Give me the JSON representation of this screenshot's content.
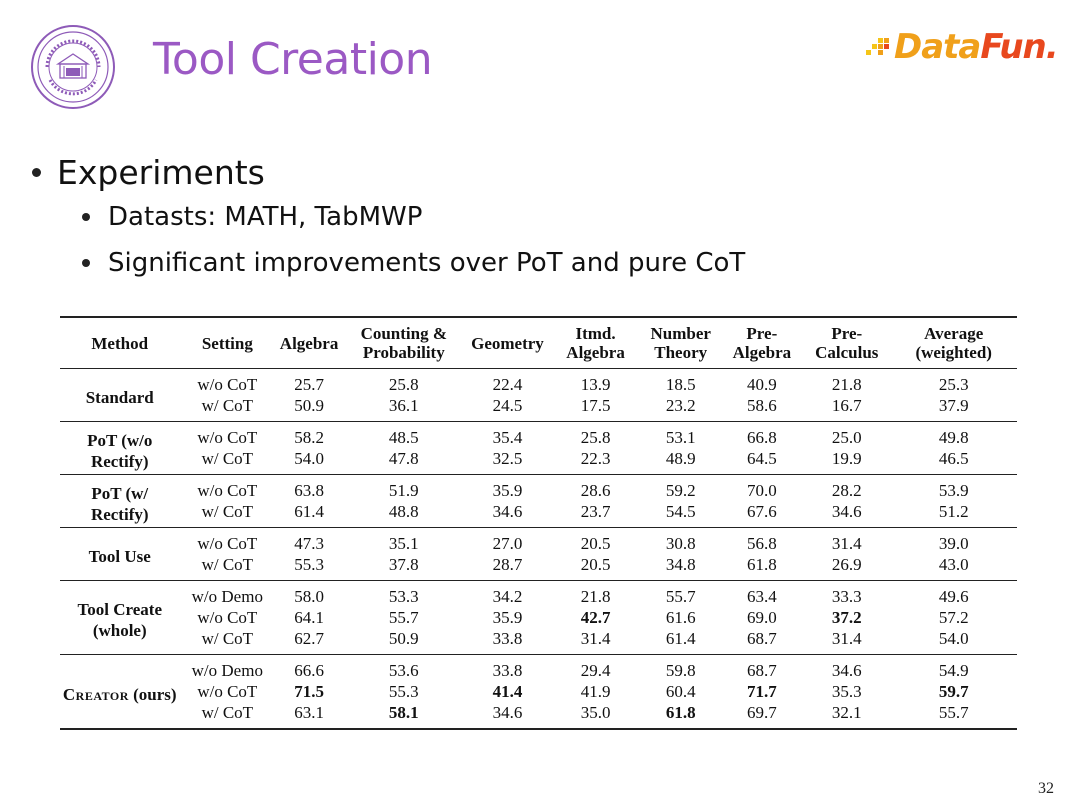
{
  "header": {
    "title": "Tool Creation",
    "brand": {
      "part1": "Data",
      "part2": "Fun."
    },
    "seal_icon": "tsinghua-nlp-seal-icon"
  },
  "bullets": {
    "main": "Experiments",
    "sub": [
      "Datasts: MATH, TabMWP",
      "Significant improvements over PoT and pure CoT"
    ]
  },
  "table": {
    "columns": [
      "Method",
      "Setting",
      "Algebra",
      "Counting & Probability",
      "Geometry",
      "Itmd. Algebra",
      "Number Theory",
      "Pre- Algebra",
      "Pre- Calculus",
      "Average (weighted)"
    ],
    "groups": [
      {
        "method": "Standard",
        "rows": [
          {
            "setting": "w/o CoT",
            "values": [
              "25.7",
              "25.8",
              "22.4",
              "13.9",
              "18.5",
              "40.9",
              "21.8",
              "25.3"
            ]
          },
          {
            "setting": "w/ CoT",
            "values": [
              "50.9",
              "36.1",
              "24.5",
              "17.5",
              "23.2",
              "58.6",
              "16.7",
              "37.9"
            ]
          }
        ]
      },
      {
        "method": "PoT (w/o Rectify)",
        "rows": [
          {
            "setting": "w/o CoT",
            "values": [
              "58.2",
              "48.5",
              "35.4",
              "25.8",
              "53.1",
              "66.8",
              "25.0",
              "49.8"
            ]
          },
          {
            "setting": "w/ CoT",
            "values": [
              "54.0",
              "47.8",
              "32.5",
              "22.3",
              "48.9",
              "64.5",
              "19.9",
              "46.5"
            ]
          }
        ]
      },
      {
        "method": "PoT (w/ Rectify)",
        "rows": [
          {
            "setting": "w/o CoT",
            "values": [
              "63.8",
              "51.9",
              "35.9",
              "28.6",
              "59.2",
              "70.0",
              "28.2",
              "53.9"
            ]
          },
          {
            "setting": "w/ CoT",
            "values": [
              "61.4",
              "48.8",
              "34.6",
              "23.7",
              "54.5",
              "67.6",
              "34.6",
              "51.2"
            ]
          }
        ]
      },
      {
        "method": "Tool Use",
        "rows": [
          {
            "setting": "w/o CoT",
            "values": [
              "47.3",
              "35.1",
              "27.0",
              "20.5",
              "30.8",
              "56.8",
              "31.4",
              "39.0"
            ]
          },
          {
            "setting": "w/ CoT",
            "values": [
              "55.3",
              "37.8",
              "28.7",
              "20.5",
              "34.8",
              "61.8",
              "26.9",
              "43.0"
            ]
          }
        ]
      },
      {
        "method": "Tool Create (whole)",
        "rows": [
          {
            "setting": "w/o Demo",
            "values": [
              "58.0",
              "53.3",
              "34.2",
              "21.8",
              "55.7",
              "63.4",
              "33.3",
              "49.6"
            ]
          },
          {
            "setting": "w/o CoT",
            "values": [
              "64.1",
              "55.7",
              "35.9",
              "42.7",
              "61.6",
              "69.0",
              "37.2",
              "57.2"
            ]
          },
          {
            "setting": "w/ CoT",
            "values": [
              "62.7",
              "50.9",
              "33.8",
              "31.4",
              "61.4",
              "68.7",
              "31.4",
              "54.0"
            ]
          }
        ]
      },
      {
        "method": "Creator (ours)",
        "rows": [
          {
            "setting": "w/o Demo",
            "values": [
              "66.6",
              "53.6",
              "33.8",
              "29.4",
              "59.8",
              "68.7",
              "34.6",
              "54.9"
            ]
          },
          {
            "setting": "w/o CoT",
            "values": [
              "71.5",
              "55.3",
              "41.4",
              "41.9",
              "60.4",
              "71.7",
              "35.3",
              "59.7"
            ]
          },
          {
            "setting": "w/ CoT",
            "values": [
              "63.1",
              "58.1",
              "34.6",
              "35.0",
              "61.8",
              "69.7",
              "32.1",
              "55.7"
            ]
          }
        ]
      }
    ],
    "bold_cells": [
      [
        4,
        1,
        3
      ],
      [
        4,
        1,
        6
      ],
      [
        5,
        1,
        0
      ],
      [
        5,
        1,
        2
      ],
      [
        5,
        1,
        5
      ],
      [
        5,
        1,
        7
      ],
      [
        5,
        2,
        1
      ],
      [
        5,
        2,
        4
      ]
    ]
  },
  "page_number": "32"
}
